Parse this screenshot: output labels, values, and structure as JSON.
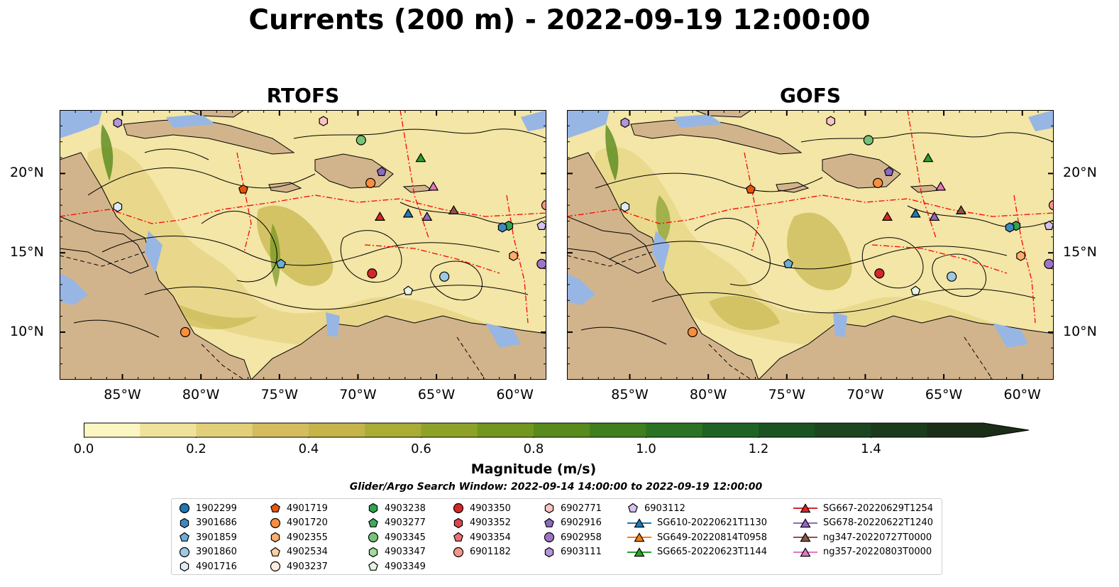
{
  "figure": {
    "title": "Currents (200 m) - 2022-09-19 12:00:00",
    "search_window": "Glider/Argo Search Window: 2022-09-14 14:00:00 to 2022-09-19 12:00:00"
  },
  "panels": [
    {
      "title": "RTOFS"
    },
    {
      "title": "GOFS"
    }
  ],
  "map_extent": {
    "lon": [
      -89,
      -58
    ],
    "lat": [
      7,
      24
    ]
  },
  "latitude_labels": [
    {
      "value": 20,
      "text": "20°N"
    },
    {
      "value": 15,
      "text": "15°N"
    },
    {
      "value": 10,
      "text": "10°N"
    }
  ],
  "longitude_labels": [
    {
      "value": -85,
      "text": "85°W"
    },
    {
      "value": -80,
      "text": "80°W"
    },
    {
      "value": -75,
      "text": "75°W"
    },
    {
      "value": -70,
      "text": "70°W"
    },
    {
      "value": -65,
      "text": "65°W"
    },
    {
      "value": -60,
      "text": "60°W"
    }
  ],
  "colorbar": {
    "label": "Magnitude (m/s)",
    "range": [
      0,
      1.6
    ],
    "extend": "max",
    "colormap": [
      "#fcf6c2",
      "#efe29b",
      "#e2cf7a",
      "#d3bd5e",
      "#c4b44a",
      "#a9ac35",
      "#8fa228",
      "#72961f",
      "#588a1d",
      "#3f7f1f",
      "#2b7224",
      "#1e6324",
      "#1a5420",
      "#1c4520",
      "#1c3a1c",
      "#1b2e17"
    ],
    "ticks": [
      {
        "value": 0.0,
        "text": "0.0"
      },
      {
        "value": 0.2,
        "text": "0.2"
      },
      {
        "value": 0.4,
        "text": "0.4"
      },
      {
        "value": 0.6,
        "text": "0.6"
      },
      {
        "value": 0.8,
        "text": "0.8"
      },
      {
        "value": 1.0,
        "text": "1.0"
      },
      {
        "value": 1.2,
        "text": "1.2"
      },
      {
        "value": 1.4,
        "text": "1.4"
      }
    ]
  },
  "colors": {
    "land": "#d2b48c",
    "lakes": "#98b6e3",
    "boundaries": "#ff0000",
    "streamlines": "#000000"
  },
  "legend": {
    "columns": [
      [
        {
          "label": "1902299",
          "marker": "circle",
          "color": "#1f77b4"
        },
        {
          "label": "3901686",
          "marker": "hexagon",
          "color": "#3d89c3"
        },
        {
          "label": "3901859",
          "marker": "pentagon",
          "color": "#6aaed6"
        },
        {
          "label": "3901860",
          "marker": "circle",
          "color": "#9ecae1"
        },
        {
          "label": "4901716",
          "marker": "hexagon",
          "color": "#deebf7"
        }
      ],
      [
        {
          "label": "4901719",
          "marker": "pentagon",
          "color": "#e6550d"
        },
        {
          "label": "4901720",
          "marker": "circle",
          "color": "#fd8d3c"
        },
        {
          "label": "4902355",
          "marker": "hexagon",
          "color": "#fdae6b"
        },
        {
          "label": "4902534",
          "marker": "pentagon",
          "color": "#fdd0a2"
        },
        {
          "label": "4903237",
          "marker": "circle",
          "color": "#feedde"
        }
      ],
      [
        {
          "label": "4903238",
          "marker": "hexagon",
          "color": "#31a354"
        },
        {
          "label": "4903277",
          "marker": "pentagon",
          "color": "#41ab5d"
        },
        {
          "label": "4903345",
          "marker": "circle",
          "color": "#74c476"
        },
        {
          "label": "4903347",
          "marker": "hexagon",
          "color": "#a1d99b"
        },
        {
          "label": "4903349",
          "marker": "pentagon",
          "color": "#e5f5e0"
        }
      ],
      [
        {
          "label": "4903350",
          "marker": "circle",
          "color": "#d62728"
        },
        {
          "label": "4903352",
          "marker": "hexagon",
          "color": "#e0444e"
        },
        {
          "label": "4903354",
          "marker": "pentagon",
          "color": "#ef6f74"
        },
        {
          "label": "6901182",
          "marker": "circle",
          "color": "#f4978b"
        }
      ],
      [
        {
          "label": "6902771",
          "marker": "hexagon",
          "color": "#fbc4c4"
        },
        {
          "label": "6902916",
          "marker": "pentagon",
          "color": "#8a6bbd"
        },
        {
          "label": "6902958",
          "marker": "circle",
          "color": "#9e74c9"
        },
        {
          "label": "6903111",
          "marker": "hexagon",
          "color": "#b594d9"
        }
      ],
      [
        {
          "label": "6903112",
          "marker": "pentagon",
          "color": "#d6c2f0"
        },
        {
          "label": "SG610-20220621T1130",
          "marker": "triangle",
          "color": "#1f77b4"
        },
        {
          "label": "SG649-20220814T0958",
          "marker": "triangle",
          "color": "#ff7f0e"
        },
        {
          "label": "SG665-20220623T1144",
          "marker": "triangle",
          "color": "#2ca02c"
        }
      ],
      [
        {
          "label": "SG667-20220629T1254",
          "marker": "triangle",
          "color": "#d62728"
        },
        {
          "label": "SG678-20220622T1240",
          "marker": "triangle",
          "color": "#9467bd"
        },
        {
          "label": "ng347-20220727T0000",
          "marker": "triangle",
          "color": "#8c564b"
        },
        {
          "label": "ng357-20220803T0000",
          "marker": "triangle",
          "color": "#e377c2"
        }
      ]
    ]
  },
  "observations": {
    "RTOFS": [
      {
        "id": "6903111",
        "lon": -85.3,
        "lat": 23.2
      },
      {
        "id": "6902771",
        "lon": -72.2,
        "lat": 23.3
      },
      {
        "id": "4903345",
        "lon": -69.8,
        "lat": 22.1
      },
      {
        "id": "SG665-20220623T1144",
        "lon": -66.0,
        "lat": 21.0
      },
      {
        "id": "6902916",
        "lon": -68.5,
        "lat": 20.1
      },
      {
        "id": "4901720",
        "lon": -69.2,
        "lat": 19.4
      },
      {
        "id": "4901719",
        "lon": -77.3,
        "lat": 19.0
      },
      {
        "id": "ng357-20220803T0000",
        "lon": -65.2,
        "lat": 19.2
      },
      {
        "id": "4901716",
        "lon": -85.3,
        "lat": 17.9
      },
      {
        "id": "SG667-20220629T1254",
        "lon": -68.6,
        "lat": 17.3
      },
      {
        "id": "SG610-20220621T1130",
        "lon": -66.8,
        "lat": 17.5
      },
      {
        "id": "SG678-20220622T1240",
        "lon": -65.6,
        "lat": 17.3
      },
      {
        "id": "ng347-20220727T0000",
        "lon": -63.9,
        "lat": 17.7
      },
      {
        "id": "4903238",
        "lon": -60.4,
        "lat": 16.7
      },
      {
        "id": "3901686",
        "lon": -60.8,
        "lat": 16.6
      },
      {
        "id": "6903112",
        "lon": -58.3,
        "lat": 16.7
      },
      {
        "id": "6902958",
        "lon": -58.3,
        "lat": 14.3
      },
      {
        "id": "3901859",
        "lon": -74.9,
        "lat": 14.3
      },
      {
        "id": "4903350",
        "lon": -69.1,
        "lat": 13.7
      },
      {
        "id": "3901860",
        "lon": -64.5,
        "lat": 13.5
      },
      {
        "id": "4903349",
        "lon": -66.8,
        "lat": 12.6
      },
      {
        "id": "4902355",
        "lon": -60.1,
        "lat": 14.8
      },
      {
        "id": "4901720",
        "lon": -81.0,
        "lat": 10.0
      },
      {
        "id": "6901182",
        "lon": -58.0,
        "lat": 18.0
      }
    ],
    "GOFS": [
      {
        "id": "6903111",
        "lon": -85.3,
        "lat": 23.2
      },
      {
        "id": "6902771",
        "lon": -72.2,
        "lat": 23.3
      },
      {
        "id": "4903345",
        "lon": -69.8,
        "lat": 22.1
      },
      {
        "id": "SG665-20220623T1144",
        "lon": -66.0,
        "lat": 21.0
      },
      {
        "id": "6902916",
        "lon": -68.5,
        "lat": 20.1
      },
      {
        "id": "4901720",
        "lon": -69.2,
        "lat": 19.4
      },
      {
        "id": "4901719",
        "lon": -77.3,
        "lat": 19.0
      },
      {
        "id": "ng357-20220803T0000",
        "lon": -65.2,
        "lat": 19.2
      },
      {
        "id": "4901716",
        "lon": -85.3,
        "lat": 17.9
      },
      {
        "id": "SG667-20220629T1254",
        "lon": -68.6,
        "lat": 17.3
      },
      {
        "id": "SG610-20220621T1130",
        "lon": -66.8,
        "lat": 17.5
      },
      {
        "id": "SG678-20220622T1240",
        "lon": -65.6,
        "lat": 17.3
      },
      {
        "id": "ng347-20220727T0000",
        "lon": -63.9,
        "lat": 17.7
      },
      {
        "id": "4903238",
        "lon": -60.4,
        "lat": 16.7
      },
      {
        "id": "3901686",
        "lon": -60.8,
        "lat": 16.6
      },
      {
        "id": "6903112",
        "lon": -58.3,
        "lat": 16.7
      },
      {
        "id": "6902958",
        "lon": -58.3,
        "lat": 14.3
      },
      {
        "id": "3901859",
        "lon": -74.9,
        "lat": 14.3
      },
      {
        "id": "4903350",
        "lon": -69.1,
        "lat": 13.7
      },
      {
        "id": "3901860",
        "lon": -64.5,
        "lat": 13.5
      },
      {
        "id": "4903349",
        "lon": -66.8,
        "lat": 12.6
      },
      {
        "id": "4902355",
        "lon": -60.1,
        "lat": 14.8
      },
      {
        "id": "4901720",
        "lon": -81.0,
        "lat": 10.0
      },
      {
        "id": "6901182",
        "lon": -58.0,
        "lat": 18.0
      }
    ]
  }
}
